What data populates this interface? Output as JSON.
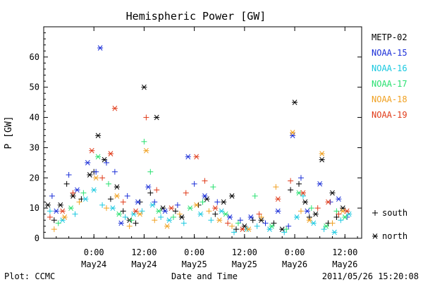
{
  "chart_data": {
    "type": "scatter",
    "title": "Hemispheric Power [GW]",
    "ylabel": "P [GW]",
    "xlabel": "Date and Time",
    "ylim": [
      0,
      70
    ],
    "yticks": [
      0,
      10,
      20,
      30,
      40,
      50,
      60
    ],
    "xlim": [
      "2011-05-23T12:00",
      "2011-05-26T16:00"
    ],
    "xticks": [
      {
        "time": "2011-05-24T00:00",
        "label": "0:00",
        "sublabel": "May24"
      },
      {
        "time": "2011-05-24T12:00",
        "label": "12:00",
        "sublabel": "May24"
      },
      {
        "time": "2011-05-25T00:00",
        "label": "0:00",
        "sublabel": "May25"
      },
      {
        "time": "2011-05-25T12:00",
        "label": "12:00",
        "sublabel": "May25"
      },
      {
        "time": "2011-05-26T00:00",
        "label": "0:00",
        "sublabel": "May26"
      },
      {
        "time": "2011-05-26T12:00",
        "label": "12:00",
        "sublabel": "May26"
      }
    ],
    "marker_legend": [
      {
        "marker": "+",
        "label": "south"
      },
      {
        "marker": "*",
        "label": "north"
      }
    ],
    "footer_left": "Plot: CCMC",
    "footer_right": "2011/05/26 15:20:08",
    "series": [
      {
        "name": "METP-02",
        "color": "#000000",
        "points": [
          [
            "2011-05-23T13:00",
            11,
            "n"
          ],
          [
            "2011-05-23T14:30",
            6,
            "s"
          ],
          [
            "2011-05-23T16:00",
            11,
            "n"
          ],
          [
            "2011-05-23T17:30",
            18,
            "s"
          ],
          [
            "2011-05-23T19:00",
            14,
            "n"
          ],
          [
            "2011-05-23T21:00",
            13,
            "s"
          ],
          [
            "2011-05-23T23:00",
            21,
            "n"
          ],
          [
            "2011-05-24T00:00",
            22,
            "s"
          ],
          [
            "2011-05-24T01:00",
            34,
            "n"
          ],
          [
            "2011-05-24T02:30",
            26,
            "n"
          ],
          [
            "2011-05-24T04:00",
            13,
            "s"
          ],
          [
            "2011-05-24T05:30",
            17,
            "n"
          ],
          [
            "2011-05-24T07:00",
            9,
            "s"
          ],
          [
            "2011-05-24T08:30",
            6,
            "n"
          ],
          [
            "2011-05-24T10:00",
            5,
            "s"
          ],
          [
            "2011-05-24T11:00",
            12,
            "s"
          ],
          [
            "2011-05-24T12:00",
            50,
            "n"
          ],
          [
            "2011-05-24T13:30",
            15,
            "s"
          ],
          [
            "2011-05-24T15:00",
            40,
            "n"
          ],
          [
            "2011-05-24T16:30",
            10,
            "n"
          ],
          [
            "2011-05-24T19:30",
            9,
            "s"
          ],
          [
            "2011-05-24T21:00",
            7,
            "n"
          ],
          [
            "2011-05-25T01:00",
            11,
            "s"
          ],
          [
            "2011-05-25T03:00",
            13,
            "n"
          ],
          [
            "2011-05-25T05:00",
            8,
            "s"
          ],
          [
            "2011-05-25T07:00",
            12,
            "n"
          ],
          [
            "2011-05-25T09:00",
            14,
            "n"
          ],
          [
            "2011-05-25T10:00",
            3,
            "s"
          ],
          [
            "2011-05-25T12:00",
            4,
            "n"
          ],
          [
            "2011-05-25T14:00",
            6,
            "s"
          ],
          [
            "2011-05-25T16:00",
            6,
            "n"
          ],
          [
            "2011-05-25T19:00",
            5,
            "s"
          ],
          [
            "2011-05-25T21:00",
            3,
            "n"
          ],
          [
            "2011-05-25T23:00",
            16,
            "s"
          ],
          [
            "2011-05-26T00:00",
            45,
            "n"
          ],
          [
            "2011-05-26T01:00",
            18,
            "s"
          ],
          [
            "2011-05-26T02:30",
            12,
            "n"
          ],
          [
            "2011-05-26T03:30",
            7,
            "s"
          ],
          [
            "2011-05-26T05:00",
            8,
            "n"
          ],
          [
            "2011-05-26T06:30",
            26,
            "n"
          ],
          [
            "2011-05-26T08:00",
            5,
            "s"
          ],
          [
            "2011-05-26T09:00",
            15,
            "n"
          ],
          [
            "2011-05-26T10:00",
            7,
            "s"
          ],
          [
            "2011-05-26T11:30",
            10,
            "n"
          ]
        ]
      },
      {
        "name": "NOAA-15",
        "color": "#1a2ed8",
        "points": [
          [
            "2011-05-23T14:00",
            14,
            "s"
          ],
          [
            "2011-05-23T15:00",
            9,
            "n"
          ],
          [
            "2011-05-23T18:00",
            21,
            "s"
          ],
          [
            "2011-05-23T20:00",
            16,
            "n"
          ],
          [
            "2011-05-23T22:30",
            25,
            "n"
          ],
          [
            "2011-05-24T00:30",
            22,
            "s"
          ],
          [
            "2011-05-24T01:30",
            63,
            "n"
          ],
          [
            "2011-05-24T03:00",
            25,
            "s"
          ],
          [
            "2011-05-24T05:00",
            22,
            "s"
          ],
          [
            "2011-05-24T06:30",
            5,
            "n"
          ],
          [
            "2011-05-24T08:00",
            14,
            "s"
          ],
          [
            "2011-05-24T10:30",
            12,
            "n"
          ],
          [
            "2011-05-24T13:00",
            17,
            "n"
          ],
          [
            "2011-05-24T14:30",
            12,
            "s"
          ],
          [
            "2011-05-24T17:00",
            9,
            "n"
          ],
          [
            "2011-05-24T20:00",
            11,
            "s"
          ],
          [
            "2011-05-24T22:30",
            27,
            "n"
          ],
          [
            "2011-05-25T00:00",
            18,
            "s"
          ],
          [
            "2011-05-25T02:30",
            14,
            "n"
          ],
          [
            "2011-05-25T05:30",
            12,
            "s"
          ],
          [
            "2011-05-25T08:30",
            7,
            "n"
          ],
          [
            "2011-05-25T11:00",
            6,
            "s"
          ],
          [
            "2011-05-25T13:30",
            7,
            "n"
          ],
          [
            "2011-05-25T17:00",
            5,
            "s"
          ],
          [
            "2011-05-25T20:00",
            9,
            "n"
          ],
          [
            "2011-05-25T22:30",
            4,
            "s"
          ],
          [
            "2011-05-25T23:30",
            34,
            "n"
          ],
          [
            "2011-05-26T01:30",
            20,
            "s"
          ],
          [
            "2011-05-26T03:00",
            9,
            "n"
          ],
          [
            "2011-05-26T06:00",
            18,
            "n"
          ],
          [
            "2011-05-26T08:30",
            12,
            "s"
          ],
          [
            "2011-05-26T10:30",
            13,
            "n"
          ],
          [
            "2011-05-26T12:30",
            7,
            "s"
          ]
        ]
      },
      {
        "name": "NOAA-16",
        "color": "#18c8e0",
        "points": [
          [
            "2011-05-23T13:30",
            9,
            "s"
          ],
          [
            "2011-05-23T16:30",
            6,
            "n"
          ],
          [
            "2011-05-23T19:30",
            8,
            "s"
          ],
          [
            "2011-05-23T22:00",
            13,
            "n"
          ],
          [
            "2011-05-24T00:00",
            16,
            "n"
          ],
          [
            "2011-05-24T02:00",
            11,
            "s"
          ],
          [
            "2011-05-24T04:30",
            10,
            "n"
          ],
          [
            "2011-05-24T07:30",
            7,
            "s"
          ],
          [
            "2011-05-24T09:30",
            8,
            "n"
          ],
          [
            "2011-05-24T11:30",
            9,
            "s"
          ],
          [
            "2011-05-24T14:00",
            11,
            "n"
          ],
          [
            "2011-05-24T16:00",
            7,
            "s"
          ],
          [
            "2011-05-24T18:00",
            6,
            "n"
          ],
          [
            "2011-05-24T21:30",
            5,
            "s"
          ],
          [
            "2011-05-25T01:30",
            8,
            "n"
          ],
          [
            "2011-05-25T04:00",
            6,
            "s"
          ],
          [
            "2011-05-25T06:30",
            9,
            "n"
          ],
          [
            "2011-05-25T09:30",
            2,
            "s"
          ],
          [
            "2011-05-25T12:30",
            3,
            "n"
          ],
          [
            "2011-05-25T15:00",
            4,
            "s"
          ],
          [
            "2011-05-25T18:00",
            3,
            "n"
          ],
          [
            "2011-05-25T21:30",
            2,
            "s"
          ],
          [
            "2011-05-26T00:30",
            7,
            "n"
          ],
          [
            "2011-05-26T02:00",
            14,
            "s"
          ],
          [
            "2011-05-26T04:30",
            5,
            "n"
          ],
          [
            "2011-05-26T07:00",
            3,
            "s"
          ],
          [
            "2011-05-26T09:30",
            2,
            "n"
          ],
          [
            "2011-05-26T11:00",
            6,
            "s"
          ],
          [
            "2011-05-26T13:00",
            8,
            "n"
          ]
        ]
      },
      {
        "name": "NOAA-17",
        "color": "#28e070",
        "points": [
          [
            "2011-05-23T15:30",
            5,
            "s"
          ],
          [
            "2011-05-23T18:30",
            10,
            "n"
          ],
          [
            "2011-05-23T21:30",
            15,
            "s"
          ],
          [
            "2011-05-24T01:00",
            27,
            "n"
          ],
          [
            "2011-05-24T03:30",
            18,
            "s"
          ],
          [
            "2011-05-24T06:00",
            8,
            "n"
          ],
          [
            "2011-05-24T09:00",
            6,
            "s"
          ],
          [
            "2011-05-24T12:00",
            32,
            "s"
          ],
          [
            "2011-05-24T13:30",
            22,
            "s"
          ],
          [
            "2011-05-24T15:30",
            9,
            "n"
          ],
          [
            "2011-05-24T19:00",
            7,
            "s"
          ],
          [
            "2011-05-24T23:00",
            10,
            "n"
          ],
          [
            "2011-05-25T02:00",
            12,
            "s"
          ],
          [
            "2011-05-25T04:30",
            17,
            "s"
          ],
          [
            "2011-05-25T07:30",
            8,
            "n"
          ],
          [
            "2011-05-25T10:30",
            5,
            "s"
          ],
          [
            "2011-05-25T14:30",
            14,
            "s"
          ],
          [
            "2011-05-25T18:30",
            4,
            "n"
          ],
          [
            "2011-05-25T22:00",
            3,
            "s"
          ],
          [
            "2011-05-26T01:00",
            15,
            "n"
          ],
          [
            "2011-05-26T04:00",
            10,
            "s"
          ],
          [
            "2011-05-26T07:30",
            4,
            "n"
          ],
          [
            "2011-05-26T10:00",
            9,
            "s"
          ],
          [
            "2011-05-26T12:00",
            7,
            "n"
          ]
        ]
      },
      {
        "name": "NOAA-18",
        "color": "#f0a020",
        "points": [
          [
            "2011-05-23T14:30",
            3,
            "s"
          ],
          [
            "2011-05-23T17:00",
            7,
            "n"
          ],
          [
            "2011-05-23T20:30",
            12,
            "s"
          ],
          [
            "2011-05-24T00:30",
            20,
            "n"
          ],
          [
            "2011-05-24T03:00",
            10,
            "s"
          ],
          [
            "2011-05-24T05:30",
            14,
            "n"
          ],
          [
            "2011-05-24T08:30",
            4,
            "s"
          ],
          [
            "2011-05-24T11:00",
            8,
            "n"
          ],
          [
            "2011-05-24T12:30",
            29,
            "n"
          ],
          [
            "2011-05-24T14:30",
            6,
            "s"
          ],
          [
            "2011-05-24T17:30",
            4,
            "n"
          ],
          [
            "2011-05-24T20:30",
            8,
            "s"
          ],
          [
            "2011-05-25T00:30",
            11,
            "n"
          ],
          [
            "2011-05-25T03:30",
            9,
            "s"
          ],
          [
            "2011-05-25T06:00",
            6,
            "n"
          ],
          [
            "2011-05-25T09:00",
            4,
            "s"
          ],
          [
            "2011-05-25T13:00",
            3,
            "n"
          ],
          [
            "2011-05-25T16:00",
            7,
            "s"
          ],
          [
            "2011-05-25T19:30",
            17,
            "s"
          ],
          [
            "2011-05-25T23:30",
            35,
            "n"
          ],
          [
            "2011-05-26T01:30",
            9,
            "s"
          ],
          [
            "2011-05-26T03:30",
            6,
            "n"
          ],
          [
            "2011-05-26T06:30",
            28,
            "n"
          ],
          [
            "2011-05-26T09:00",
            5,
            "s"
          ],
          [
            "2011-05-26T11:30",
            9,
            "n"
          ]
        ]
      },
      {
        "name": "NOAA-19",
        "color": "#e03a18",
        "points": [
          [
            "2011-05-23T13:30",
            7,
            "s"
          ],
          [
            "2011-05-23T16:30",
            9,
            "n"
          ],
          [
            "2011-05-23T19:00",
            15,
            "s"
          ],
          [
            "2011-05-23T23:30",
            29,
            "n"
          ],
          [
            "2011-05-24T02:00",
            20,
            "s"
          ],
          [
            "2011-05-24T04:00",
            28,
            "n"
          ],
          [
            "2011-05-24T05:00",
            43,
            "n"
          ],
          [
            "2011-05-24T07:00",
            12,
            "s"
          ],
          [
            "2011-05-24T10:00",
            9,
            "n"
          ],
          [
            "2011-05-24T12:30",
            40,
            "s"
          ],
          [
            "2011-05-24T15:00",
            16,
            "s"
          ],
          [
            "2011-05-24T18:30",
            10,
            "n"
          ],
          [
            "2011-05-24T22:00",
            15,
            "s"
          ],
          [
            "2011-05-25T00:30",
            27,
            "n"
          ],
          [
            "2011-05-25T02:30",
            19,
            "s"
          ],
          [
            "2011-05-25T05:00",
            10,
            "n"
          ],
          [
            "2011-05-25T08:00",
            5,
            "s"
          ],
          [
            "2011-05-25T11:30",
            3,
            "n"
          ],
          [
            "2011-05-25T15:30",
            8,
            "s"
          ],
          [
            "2011-05-25T20:00",
            13,
            "n"
          ],
          [
            "2011-05-25T23:00",
            19,
            "s"
          ],
          [
            "2011-05-26T02:00",
            15,
            "n"
          ],
          [
            "2011-05-26T05:30",
            10,
            "s"
          ],
          [
            "2011-05-26T08:00",
            12,
            "n"
          ],
          [
            "2011-05-26T10:30",
            8,
            "s"
          ],
          [
            "2011-05-26T12:30",
            9,
            "n"
          ]
        ]
      }
    ]
  }
}
